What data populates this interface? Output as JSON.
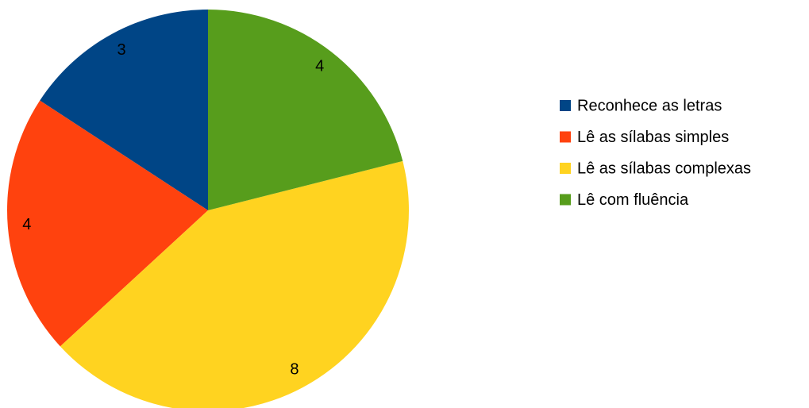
{
  "chart_data": {
    "type": "pie",
    "categories": [
      "Reconhece as letras",
      "Lê as sílabas simples",
      "Lê as sílabas complexas",
      "Lê com fluência"
    ],
    "values": [
      3,
      4,
      8,
      4
    ],
    "colors": [
      "#004586",
      "#ff420e",
      "#ffd320",
      "#579d1c"
    ],
    "direction": "counterclockwise",
    "legend": "right"
  }
}
